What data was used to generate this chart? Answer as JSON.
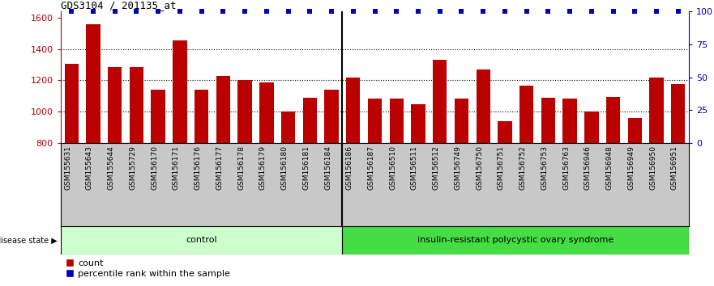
{
  "title": "GDS3104 / 201135_at",
  "categories": [
    "GSM155631",
    "GSM155643",
    "GSM155644",
    "GSM155729",
    "GSM156170",
    "GSM156171",
    "GSM156176",
    "GSM156177",
    "GSM156178",
    "GSM156179",
    "GSM156180",
    "GSM156181",
    "GSM156184",
    "GSM156186",
    "GSM156187",
    "GSM156510",
    "GSM156511",
    "GSM156512",
    "GSM156749",
    "GSM156750",
    "GSM156751",
    "GSM156752",
    "GSM156753",
    "GSM156763",
    "GSM156946",
    "GSM156948",
    "GSM156949",
    "GSM156950",
    "GSM156951"
  ],
  "bar_values": [
    1305,
    1560,
    1285,
    1285,
    1140,
    1455,
    1140,
    1230,
    1200,
    1185,
    1000,
    1090,
    1140,
    1220,
    1085,
    1085,
    1050,
    1330,
    1085,
    1270,
    940,
    1165,
    1090,
    1085,
    1000,
    1095,
    960,
    1220,
    1175
  ],
  "group_labels": [
    "control",
    "insulin-resistant polycystic ovary syndrome"
  ],
  "group_sizes": [
    13,
    16
  ],
  "bar_color": "#BB0000",
  "percentile_color": "#0000BB",
  "ylim_left": [
    800,
    1640
  ],
  "yticks_left": [
    800,
    1000,
    1200,
    1400,
    1600
  ],
  "yticks_right": [
    0,
    25,
    50,
    75,
    100
  ],
  "grid_values": [
    1000,
    1200,
    1400
  ],
  "title_fontsize": 9,
  "label_fontsize": 6.5,
  "tick_bg_color": "#C8C8C8",
  "control_color": "#CCFFCC",
  "disease_color": "#44DD44",
  "legend_count_label": "count",
  "legend_pct_label": "percentile rank within the sample",
  "disease_state_label": "disease state"
}
